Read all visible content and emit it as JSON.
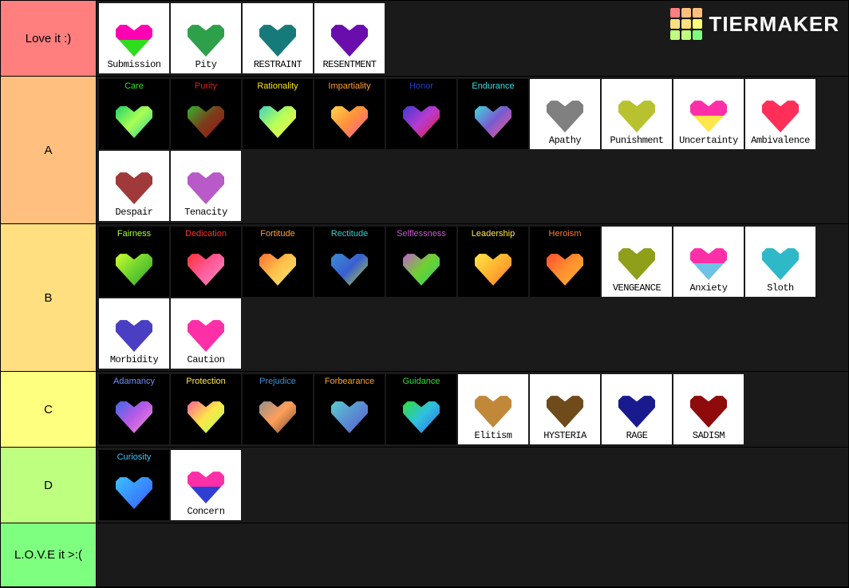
{
  "logo": {
    "text": "TIERMAKER",
    "grid_colors": [
      "#ff7f7f",
      "#ffbf7f",
      "#ffbf7f",
      "#ffdf7f",
      "#ffdf7f",
      "#ffff7f",
      "#bfff7f",
      "#bfff7f",
      "#7fff7f"
    ]
  },
  "tiers": [
    {
      "label": "Love it :)",
      "bg": "#ff7f7f",
      "items": [
        {
          "bg": "white",
          "label": "Submission",
          "label_pos": "bottom",
          "heart_top": "#ff00b3",
          "heart_bot": "#2fdd1e"
        },
        {
          "bg": "white",
          "label": "Pity",
          "label_pos": "bottom",
          "heart_top": "#2fa04a",
          "heart_bot": "#2fa04a"
        },
        {
          "bg": "white",
          "label": "RESTRAINT",
          "label_pos": "bottom",
          "heart_top": "#167a7a",
          "heart_bot": "#167a7a"
        },
        {
          "bg": "white",
          "label": "RESENTMENT",
          "label_pos": "bottom",
          "heart_top": "#6a0dad",
          "heart_bot": "#6a0dad"
        }
      ]
    },
    {
      "label": "A",
      "bg": "#ffbf7f",
      "items": [
        {
          "bg": "dark",
          "label": "Care",
          "label_pos": "top",
          "label_color": "#2fe02f",
          "heart_grad": [
            "#18d06a",
            "#aaff55",
            "#22cc99"
          ]
        },
        {
          "bg": "dark",
          "label": "Purity",
          "label_pos": "top",
          "label_color": "#d41f1f",
          "heart_grad": [
            "#2fbb2f",
            "#7a3d1a",
            "#a01010"
          ]
        },
        {
          "bg": "dark",
          "label": "Rationality",
          "label_pos": "top",
          "label_color": "#ffe600",
          "heart_grad": [
            "#3ad1c8",
            "#b8ff55",
            "#fff04a"
          ]
        },
        {
          "bg": "dark",
          "label": "Impartiality",
          "label_pos": "top",
          "label_color": "#ff9f2f",
          "heart_grad": [
            "#ffd84a",
            "#ff8f3a",
            "#ff5aa8"
          ]
        },
        {
          "bg": "dark",
          "label": "Honor",
          "label_pos": "top",
          "label_color": "#1a3fd1",
          "heart_grad": [
            "#3a3ad1",
            "#b83ad1",
            "#e01f2f"
          ]
        },
        {
          "bg": "dark",
          "label": "Endurance",
          "label_pos": "top",
          "label_color": "#3ae0e0",
          "heart_grad": [
            "#3ae0e0",
            "#7a5acf",
            "#ff5a8a"
          ]
        },
        {
          "bg": "white",
          "label": "Apathy",
          "label_pos": "bottom",
          "heart_top": "#808080",
          "heart_bot": "#808080"
        },
        {
          "bg": "white",
          "label": "Punishment",
          "label_pos": "bottom",
          "heart_top": "#b8c22f",
          "heart_bot": "#b8c22f"
        },
        {
          "bg": "white",
          "label": "Uncertainty",
          "label_pos": "bottom",
          "heart_top": "#ff2fa8",
          "heart_bot": "#ffe64a"
        },
        {
          "bg": "white",
          "label": "Ambivalence",
          "label_pos": "bottom",
          "heart_top": "#ff2f5a",
          "heart_bot": "#ff2f5a"
        },
        {
          "bg": "white",
          "label": "Despair",
          "label_pos": "bottom",
          "heart_top": "#a03a3a",
          "heart_bot": "#a03a3a"
        },
        {
          "bg": "white",
          "label": "Tenacity",
          "label_pos": "bottom",
          "heart_top": "#b85ac8",
          "heart_bot": "#b85ac8"
        }
      ]
    },
    {
      "label": "B",
      "bg": "#ffdf7f",
      "items": [
        {
          "bg": "dark",
          "label": "Fairness",
          "label_pos": "top",
          "label_color": "#aaff2f",
          "heart_grad": [
            "#d4ff2f",
            "#6fd42f",
            "#2fa02f"
          ]
        },
        {
          "bg": "dark",
          "label": "Dedication",
          "label_pos": "top",
          "label_color": "#ff2f2f",
          "heart_grad": [
            "#ff2f2f",
            "#ff5a9a",
            "#ff8fc0"
          ]
        },
        {
          "bg": "dark",
          "label": "Fortitude",
          "label_pos": "top",
          "label_color": "#ff9f2f",
          "heart_grad": [
            "#ff6a2f",
            "#ffc24a",
            "#ffe67a"
          ]
        },
        {
          "bg": "dark",
          "label": "Rectitude",
          "label_pos": "top",
          "label_color": "#2fd1d1",
          "heart_grad": [
            "#3a8fd1",
            "#3a5fd1",
            "#b8d12f"
          ]
        },
        {
          "bg": "dark",
          "label": "Selflessness",
          "label_pos": "top",
          "label_color": "#c85ad1",
          "heart_grad": [
            "#c85ad1",
            "#6fd12f",
            "#2fd16f"
          ]
        },
        {
          "bg": "dark",
          "label": "Leadership",
          "label_pos": "top",
          "label_color": "#ffe64a",
          "heart_grad": [
            "#ffe64a",
            "#ffb42f",
            "#ff7a2f"
          ]
        },
        {
          "bg": "dark",
          "label": "Heroism",
          "label_pos": "top",
          "label_color": "#ff7a2f",
          "heart_grad": [
            "#ff4a2f",
            "#ff8f2f",
            "#ffb42f"
          ]
        },
        {
          "bg": "white",
          "label": "VENGEANCE",
          "label_pos": "bottom",
          "heart_top": "#8f9f1a",
          "heart_bot": "#8f9f1a"
        },
        {
          "bg": "white",
          "label": "Anxiety",
          "label_pos": "bottom",
          "heart_top": "#ff2fa8",
          "heart_bot": "#6fc2e6"
        },
        {
          "bg": "white",
          "label": "Sloth",
          "label_pos": "bottom",
          "heart_top": "#2fb8c8",
          "heart_bot": "#2fb8c8"
        },
        {
          "bg": "white",
          "label": "Morbidity",
          "label_pos": "bottom",
          "heart_top": "#4a3fc2",
          "heart_bot": "#4a3fc2"
        },
        {
          "bg": "white",
          "label": "Caution",
          "label_pos": "bottom",
          "heart_top": "#ff2fa8",
          "heart_bot": "#ff2fa8"
        }
      ]
    },
    {
      "label": "C",
      "bg": "#ffff7f",
      "items": [
        {
          "bg": "dark",
          "label": "Adamancy",
          "label_pos": "top",
          "label_color": "#6a8fff",
          "heart_grad": [
            "#3a6ae6",
            "#b85ae6",
            "#ff8fd1"
          ]
        },
        {
          "bg": "dark",
          "label": "Protection",
          "label_pos": "top",
          "label_color": "#ffe64a",
          "heart_grad": [
            "#ff5a9a",
            "#ffe64a",
            "#aaff5a"
          ]
        },
        {
          "bg": "dark",
          "label": "Prejudice",
          "label_pos": "top",
          "label_color": "#3a8fd1",
          "heart_grad": [
            "#8f8f8f",
            "#ff9f5a",
            "#6f4a2f"
          ]
        },
        {
          "bg": "dark",
          "label": "Forbearance",
          "label_pos": "top",
          "label_color": "#ff9f2f",
          "heart_grad": [
            "#5ad1d1",
            "#5a8fd1",
            "#5a5fd1"
          ]
        },
        {
          "bg": "dark",
          "label": "Guidance",
          "label_pos": "top",
          "label_color": "#2fe02f",
          "heart_grad": [
            "#2fe02f",
            "#2fc0e0",
            "#2f6fe0"
          ]
        },
        {
          "bg": "white",
          "label": "Elitism",
          "label_pos": "bottom",
          "heart_top": "#c2883a",
          "heart_bot": "#c2883a"
        },
        {
          "bg": "white",
          "label": "HYSTERIA",
          "label_pos": "bottom",
          "heart_top": "#6f4a1a",
          "heart_bot": "#6f4a1a"
        },
        {
          "bg": "white",
          "label": "RAGE",
          "label_pos": "bottom",
          "heart_top": "#1a1a8f",
          "heart_bot": "#1a1a8f"
        },
        {
          "bg": "white",
          "label": "SADISM",
          "label_pos": "bottom",
          "heart_top": "#8f0a0a",
          "heart_bot": "#8f0a0a"
        }
      ]
    },
    {
      "label": "D",
      "bg": "#bfff7f",
      "items": [
        {
          "bg": "dark",
          "label": "Curiosity",
          "label_pos": "top",
          "label_color": "#3ac2ff",
          "heart_grad": [
            "#3ac2ff",
            "#3a8fff",
            "#3a5fff"
          ]
        },
        {
          "bg": "white",
          "label": "Concern",
          "label_pos": "bottom",
          "heart_top": "#ff2fa8",
          "heart_bot": "#2f3fd1"
        }
      ]
    },
    {
      "label": "L.O.V.E it >:(",
      "bg": "#7fff7f",
      "items": []
    }
  ]
}
